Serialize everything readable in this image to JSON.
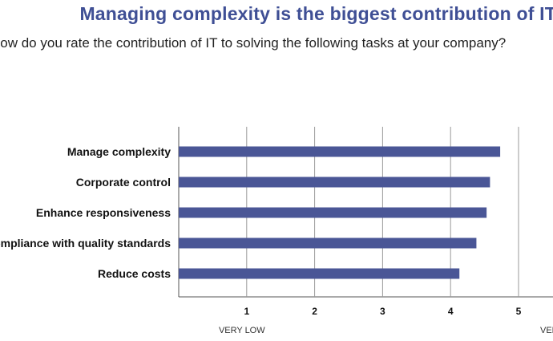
{
  "header": {
    "title": "Managing complexity is the biggest contribution of IT",
    "subtitle": "How do you rate the contribution of IT to solving the following tasks at your company?"
  },
  "chart_data": {
    "type": "bar",
    "orientation": "horizontal",
    "categories": [
      "Manage complexity",
      "Corporate control",
      "Enhance responsiveness",
      "Compliance with quality standards",
      "Reduce costs"
    ],
    "values": [
      4.73,
      4.58,
      4.53,
      4.38,
      4.13
    ],
    "xlim": [
      0,
      5.5
    ],
    "xticks": [
      "1",
      "2",
      "3",
      "4",
      "5"
    ],
    "scale_labels": {
      "low": "VERY LOW",
      "high": "VERY HIGH"
    },
    "bar_color": "#4a5696",
    "grid": true
  }
}
